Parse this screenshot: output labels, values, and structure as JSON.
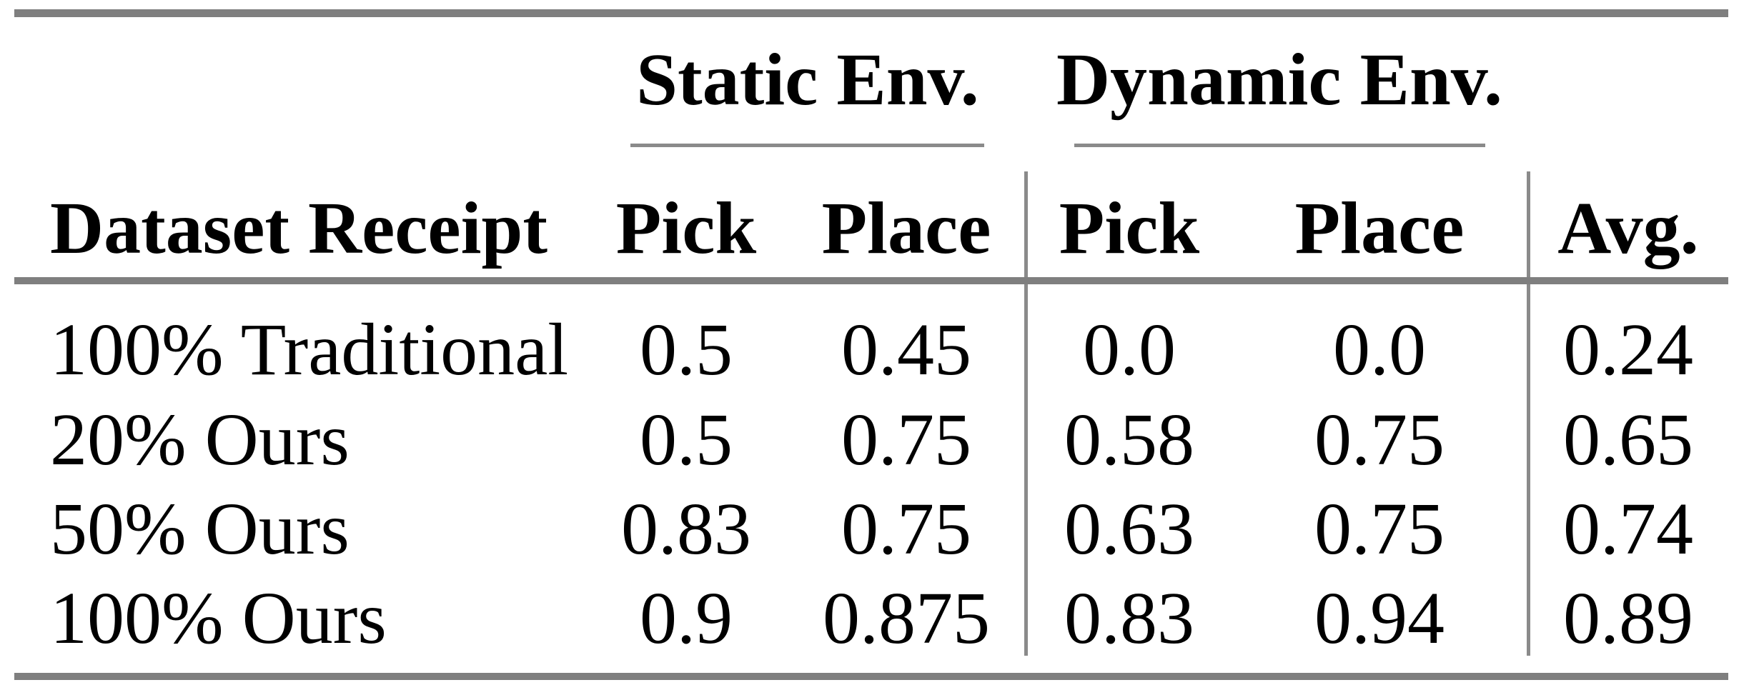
{
  "colors": {
    "background": "#ffffff",
    "text": "#000000",
    "thick_rule_gray": "#7f7f7f",
    "thin_line_gray": "#8a8a8a"
  },
  "table": {
    "group_headers": {
      "static": "Static Env.",
      "dynamic": "Dynamic Env."
    },
    "columns": [
      "Dataset Receipt",
      "Pick",
      "Place",
      "Pick",
      "Place",
      "Avg."
    ],
    "rows": [
      {
        "label": "100% Traditional",
        "values": [
          "0.5",
          "0.45",
          "0.0",
          "0.0",
          "0.24"
        ]
      },
      {
        "label": "20% Ours",
        "values": [
          "0.5",
          "0.75",
          "0.58",
          "0.75",
          "0.65"
        ]
      },
      {
        "label": "50% Ours",
        "values": [
          "0.83",
          "0.75",
          "0.63",
          "0.75",
          "0.74"
        ]
      },
      {
        "label": "100% Ours",
        "values": [
          "0.9",
          "0.875",
          "0.83",
          "0.94",
          "0.89"
        ]
      }
    ]
  },
  "chart_data": {
    "type": "table",
    "title": "",
    "column_groups": [
      {
        "label": "",
        "span": 1
      },
      {
        "label": "Static Env.",
        "span": 2
      },
      {
        "label": "Dynamic Env.",
        "span": 2
      },
      {
        "label": "",
        "span": 1
      }
    ],
    "columns": [
      "Dataset Receipt",
      "Static Pick",
      "Static Place",
      "Dynamic Pick",
      "Dynamic Place",
      "Avg."
    ],
    "rows": [
      [
        "100% Traditional",
        0.5,
        0.45,
        0.0,
        0.0,
        0.24
      ],
      [
        "20% Ours",
        0.5,
        0.75,
        0.58,
        0.75,
        0.65
      ],
      [
        "50% Ours",
        0.83,
        0.75,
        0.63,
        0.75,
        0.74
      ],
      [
        "100% Ours",
        0.9,
        0.875,
        0.83,
        0.94,
        0.89
      ]
    ]
  }
}
